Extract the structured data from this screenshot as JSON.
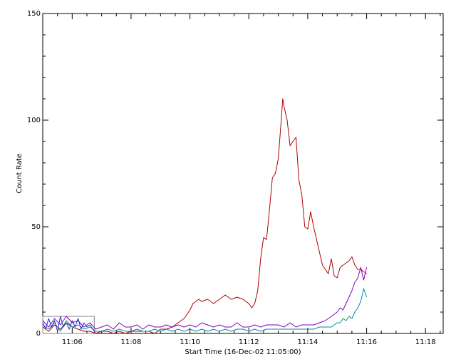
{
  "chart_data": {
    "type": "line",
    "xlabel": "Start Time (16-Dec-02 11:05:00)",
    "ylabel": "Count Rate",
    "xlim": [
      5,
      18.6
    ],
    "ylim": [
      0,
      150
    ],
    "x_ticks": [
      {
        "value": 6,
        "label": "11:06"
      },
      {
        "value": 8,
        "label": "11:08"
      },
      {
        "value": 10,
        "label": "11:10"
      },
      {
        "value": 12,
        "label": "11:12"
      },
      {
        "value": 14,
        "label": "11:14"
      },
      {
        "value": 16,
        "label": "11:16"
      },
      {
        "value": 18,
        "label": "11:18"
      }
    ],
    "y_ticks": [
      {
        "value": 0,
        "label": "0"
      },
      {
        "value": 50,
        "label": "50"
      },
      {
        "value": 100,
        "label": "100"
      },
      {
        "value": 150,
        "label": "150"
      }
    ],
    "box_annotation": {
      "x0": 5,
      "x1": 6.75,
      "y0": 0,
      "y1": 8
    },
    "series": [
      {
        "color": "#b00000",
        "x": [
          5.0,
          5.2,
          5.4,
          5.6,
          5.8,
          6.0,
          6.2,
          6.4,
          6.6,
          6.8,
          7.0,
          7.2,
          7.4,
          7.6,
          7.8,
          8.0,
          8.2,
          8.4,
          8.6,
          8.8,
          9.0,
          9.2,
          9.4,
          9.6,
          9.8,
          10.0,
          10.1,
          10.2,
          10.3,
          10.4,
          10.6,
          10.8,
          11.0,
          11.2,
          11.4,
          11.6,
          11.8,
          12.0,
          12.1,
          12.2,
          12.3,
          12.4,
          12.5,
          12.6,
          12.7,
          12.8,
          12.9,
          13.0,
          13.1,
          13.15,
          13.2,
          13.3,
          13.4,
          13.5,
          13.6,
          13.7,
          13.8,
          13.9,
          14.0,
          14.1,
          14.2,
          14.3,
          14.4,
          14.5,
          14.6,
          14.7,
          14.8,
          14.9,
          15.0,
          15.1,
          15.2,
          15.3,
          15.4,
          15.5,
          15.6,
          15.7,
          15.8,
          15.9,
          16.0
        ],
        "y": [
          3,
          1,
          4,
          2,
          5,
          3,
          2,
          1,
          1,
          0,
          1,
          1,
          0,
          1,
          0,
          1,
          1,
          1,
          1,
          0,
          2,
          2,
          3,
          5,
          7,
          11,
          14,
          15,
          16,
          15,
          16,
          14,
          16,
          18,
          16,
          17,
          16,
          14,
          12,
          14,
          20,
          35,
          45,
          44,
          58,
          73,
          75,
          82,
          100,
          110,
          106,
          100,
          88,
          90,
          92,
          72,
          65,
          50,
          49,
          57,
          50,
          44,
          38,
          32,
          30,
          28,
          35,
          27,
          26,
          31,
          32,
          33,
          34,
          36,
          32,
          30,
          30,
          29,
          28
        ]
      },
      {
        "color": "#8000c0",
        "x": [
          5.0,
          5.2,
          5.4,
          5.6,
          5.8,
          6.0,
          6.2,
          6.4,
          6.6,
          6.8,
          7.0,
          7.2,
          7.4,
          7.6,
          7.8,
          8.0,
          8.2,
          8.4,
          8.6,
          8.8,
          9.0,
          9.2,
          9.4,
          9.6,
          9.8,
          10.0,
          10.2,
          10.4,
          10.6,
          10.8,
          11.0,
          11.2,
          11.4,
          11.6,
          11.8,
          12.0,
          12.2,
          12.4,
          12.6,
          12.8,
          13.0,
          13.2,
          13.4,
          13.6,
          13.8,
          14.0,
          14.2,
          14.4,
          14.6,
          14.8,
          15.0,
          15.1,
          15.2,
          15.3,
          15.4,
          15.5,
          15.6,
          15.7,
          15.8,
          15.9,
          16.0
        ],
        "y": [
          6,
          3,
          7,
          4,
          8,
          5,
          6,
          3,
          5,
          2,
          3,
          4,
          2,
          5,
          3,
          3,
          4,
          2,
          4,
          3,
          3,
          4,
          3,
          4,
          3,
          4,
          3,
          5,
          4,
          3,
          4,
          3,
          3,
          5,
          3,
          3,
          4,
          3,
          4,
          4,
          4,
          3,
          5,
          3,
          4,
          4,
          4,
          5,
          6,
          8,
          10,
          12,
          11,
          14,
          17,
          20,
          24,
          26,
          31,
          25,
          31
        ]
      },
      {
        "color": "#008c9c",
        "x": [
          5.0,
          5.2,
          5.4,
          5.6,
          5.8,
          6.0,
          6.2,
          6.4,
          6.6,
          6.8,
          7.0,
          7.2,
          7.4,
          7.6,
          7.8,
          8.0,
          8.2,
          8.4,
          8.6,
          8.8,
          9.0,
          9.2,
          9.4,
          9.6,
          9.8,
          10.0,
          10.2,
          10.4,
          10.6,
          10.8,
          11.0,
          11.2,
          11.4,
          11.6,
          11.8,
          12.0,
          12.2,
          12.4,
          12.6,
          12.8,
          13.0,
          13.2,
          13.4,
          13.6,
          13.8,
          14.0,
          14.2,
          14.4,
          14.6,
          14.8,
          15.0,
          15.1,
          15.2,
          15.3,
          15.4,
          15.5,
          15.6,
          15.7,
          15.8,
          15.9,
          16.0
        ],
        "y": [
          4,
          2,
          5,
          1,
          6,
          3,
          4,
          2,
          3,
          1,
          1,
          2,
          1,
          2,
          1,
          1,
          2,
          1,
          1,
          2,
          1,
          2,
          1,
          2,
          1,
          2,
          1,
          2,
          1,
          2,
          1,
          2,
          1,
          2,
          2,
          1,
          2,
          1,
          2,
          2,
          2,
          2,
          2,
          2,
          2,
          2,
          2,
          3,
          3,
          3,
          5,
          5,
          7,
          6,
          8,
          7,
          10,
          12,
          15,
          21,
          17
        ]
      },
      {
        "color": "#2030c8",
        "x": [
          5.0,
          5.1,
          5.2,
          5.3,
          5.4,
          5.5,
          5.6,
          5.7,
          5.8,
          5.9,
          6.0,
          6.1,
          6.2,
          6.3,
          6.4,
          6.5,
          6.6,
          6.7,
          6.8
        ],
        "y": [
          5,
          2,
          7,
          3,
          6,
          1,
          8,
          3,
          5,
          2,
          6,
          3,
          7,
          2,
          5,
          3,
          4,
          2,
          0
        ]
      }
    ]
  }
}
